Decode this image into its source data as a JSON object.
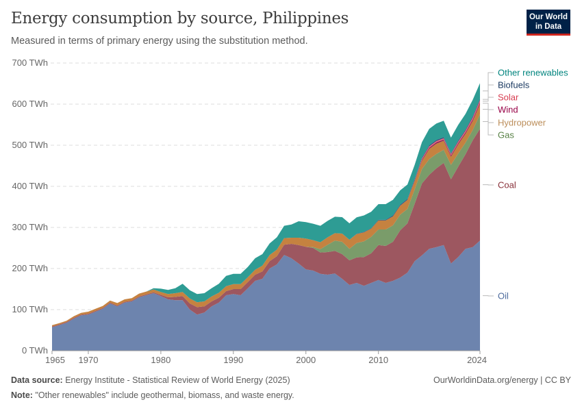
{
  "header": {
    "title": "Energy consumption by source, Philippines",
    "subtitle": "Measured in terms of primary energy using the substitution method.",
    "logo": "Our World in Data"
  },
  "footer": {
    "source_label": "Data source:",
    "source": "Energy Institute - Statistical Review of World Energy (2025)",
    "url": "OurWorldinData.org/energy | CC BY",
    "note_label": "Note:",
    "note": "\"Other renewables\" include geothermal, biomass, and waste energy."
  },
  "chart_data": {
    "type": "area",
    "stacked": true,
    "title": "Energy consumption by source, Philippines",
    "ylabel": "TWh",
    "ylim": [
      0,
      700
    ],
    "yticks": [
      "0 TWh",
      "100 TWh",
      "200 TWh",
      "300 TWh",
      "400 TWh",
      "500 TWh",
      "600 TWh",
      "700 TWh"
    ],
    "xticks": [
      "1965",
      "1970",
      "1980",
      "1990",
      "2000",
      "2010",
      "2024"
    ],
    "x_start": 1965,
    "x_end": 2024,
    "grid": true,
    "legend": "right-inline",
    "series": [
      {
        "name": "Oil",
        "color": "#6d84ae",
        "label_color": "#4c6a9c",
        "values": [
          57,
          62,
          68,
          78,
          86,
          88,
          95,
          102,
          115,
          108,
          117,
          120,
          130,
          135,
          140,
          133,
          125,
          123,
          123,
          100,
          88,
          93,
          108,
          117,
          135,
          138,
          135,
          152,
          170,
          175,
          200,
          210,
          233,
          225,
          212,
          198,
          195,
          187,
          185,
          188,
          175,
          160,
          165,
          158,
          165,
          172,
          165,
          170,
          178,
          190,
          218,
          232,
          248,
          252,
          257,
          212,
          228,
          248,
          252,
          268
        ]
      },
      {
        "name": "Coal",
        "color": "#9d5760",
        "label_color": "#883039",
        "values": [
          2,
          2,
          2,
          2,
          2,
          2,
          2,
          2,
          2,
          2,
          2,
          2,
          2,
          2,
          2,
          3,
          5,
          8,
          10,
          15,
          18,
          15,
          12,
          12,
          10,
          12,
          15,
          15,
          15,
          18,
          18,
          20,
          25,
          35,
          45,
          55,
          55,
          52,
          55,
          55,
          60,
          60,
          62,
          70,
          72,
          85,
          90,
          95,
          115,
          120,
          140,
          175,
          180,
          192,
          200,
          205,
          220,
          230,
          260,
          272
        ]
      },
      {
        "name": "Gas",
        "color": "#7a9c6a",
        "label_color": "#578145",
        "values": [
          0,
          0,
          0,
          0,
          0,
          0,
          0,
          0,
          0,
          0,
          0,
          0,
          0,
          0,
          0,
          0,
          0,
          0,
          0,
          0,
          0,
          0,
          0,
          0,
          0,
          0,
          0,
          0,
          0,
          0,
          0,
          0,
          0,
          0,
          0,
          0,
          2,
          8,
          18,
          25,
          30,
          28,
          35,
          38,
          40,
          38,
          40,
          40,
          38,
          35,
          35,
          35,
          38,
          35,
          32,
          35,
          32,
          28,
          25,
          35
        ]
      },
      {
        "name": "Hydropower",
        "color": "#c58240",
        "label_color": "#bc8e5a",
        "values": [
          3,
          3,
          3,
          4,
          4,
          5,
          5,
          5,
          5,
          6,
          6,
          6,
          7,
          7,
          7,
          7,
          8,
          9,
          10,
          12,
          12,
          12,
          12,
          12,
          12,
          12,
          12,
          12,
          12,
          14,
          15,
          16,
          16,
          15,
          18,
          20,
          17,
          17,
          18,
          18,
          20,
          22,
          22,
          22,
          20,
          22,
          22,
          22,
          22,
          22,
          20,
          20,
          25,
          25,
          22,
          20,
          22,
          22,
          22,
          25
        ]
      },
      {
        "name": "Wind",
        "color": "#8e1a55",
        "label_color": "#970046",
        "values": [
          0,
          0,
          0,
          0,
          0,
          0,
          0,
          0,
          0,
          0,
          0,
          0,
          0,
          0,
          0,
          0,
          0,
          0,
          0,
          0,
          0,
          0,
          0,
          0,
          0,
          0,
          0,
          0,
          0,
          0,
          0,
          0,
          0,
          0,
          0,
          0,
          0,
          0,
          0,
          0,
          0,
          0,
          0,
          0.1,
          0.1,
          0.1,
          0.1,
          0.1,
          0.2,
          0.3,
          2,
          2.5,
          2.8,
          3,
          2.5,
          3,
          3,
          3,
          3.5,
          4
        ]
      },
      {
        "name": "Solar",
        "color": "#e0677a",
        "label_color": "#d73c50",
        "values": [
          0,
          0,
          0,
          0,
          0,
          0,
          0,
          0,
          0,
          0,
          0,
          0,
          0,
          0,
          0,
          0,
          0,
          0,
          0,
          0,
          0,
          0,
          0,
          0,
          0,
          0,
          0,
          0,
          0,
          0,
          0,
          0,
          0,
          0,
          0,
          0,
          0,
          0,
          0,
          0,
          0,
          0,
          0,
          0,
          0,
          0,
          0,
          0,
          0,
          0,
          0.5,
          3,
          3.5,
          3.5,
          3.5,
          3.5,
          4,
          4.5,
          5,
          6
        ]
      },
      {
        "name": "Biofuels",
        "color": "#2b4a78",
        "label_color": "#18375f",
        "values": [
          0,
          0,
          0,
          0,
          0,
          0,
          0,
          0,
          0,
          0,
          0,
          0,
          0,
          0,
          0,
          0,
          0,
          0,
          0,
          0,
          0,
          0,
          0,
          0,
          0,
          0,
          0,
          0,
          0,
          0,
          0,
          0,
          0,
          0,
          0,
          0,
          0,
          0,
          0,
          0,
          0,
          0,
          0.5,
          1,
          1,
          1.5,
          1.5,
          2,
          2,
          2,
          2,
          2,
          2.5,
          2.5,
          2.5,
          2,
          2.5,
          2.5,
          3,
          3
        ]
      },
      {
        "name": "Other renewables",
        "color": "#2e9c94",
        "label_color": "#00847e",
        "values": [
          0,
          0,
          0,
          0,
          0,
          0,
          0,
          0,
          0,
          0,
          0,
          0,
          0,
          0,
          3,
          8,
          10,
          12,
          20,
          20,
          20,
          20,
          20,
          22,
          25,
          25,
          25,
          25,
          28,
          28,
          28,
          30,
          30,
          32,
          40,
          40,
          40,
          40,
          40,
          40,
          40,
          40,
          40,
          40,
          40,
          38,
          38,
          38,
          35,
          35,
          35,
          38,
          40,
          40,
          40,
          38,
          38,
          38,
          40,
          38
        ]
      }
    ]
  }
}
